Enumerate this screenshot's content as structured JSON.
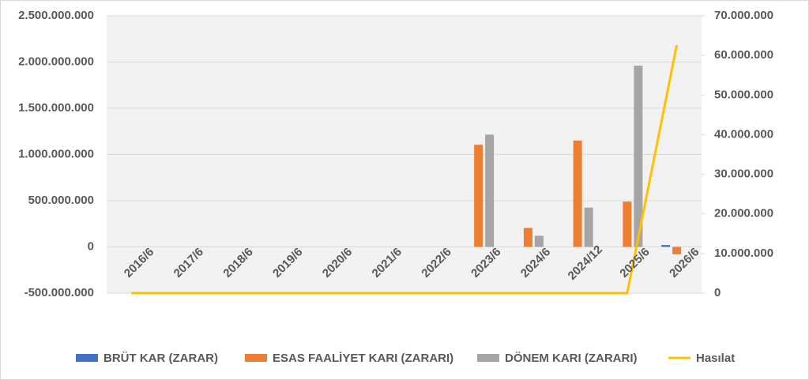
{
  "chart_data": {
    "type": "bar",
    "categories": [
      "2016/6",
      "2017/6",
      "2018/6",
      "2019/6",
      "2020/6",
      "2021/6",
      "2022/6",
      "2023/6",
      "2024/6",
      "2024/12",
      "2025/6",
      "2026/6"
    ],
    "series": [
      {
        "name": "BRÜT KAR (ZARAR)",
        "color": "#4472c4",
        "type": "bar",
        "values": [
          null,
          null,
          null,
          null,
          null,
          null,
          null,
          null,
          null,
          null,
          null,
          20000000
        ]
      },
      {
        "name": "ESAS FAALİYET KARI (ZARARI)",
        "color": "#ed7d31",
        "type": "bar",
        "values": [
          null,
          null,
          null,
          null,
          null,
          null,
          null,
          1105000000,
          205000000,
          1150000000,
          490000000,
          -80000000
        ]
      },
      {
        "name": "DÖNEM KARI (ZARARI)",
        "color": "#a5a5a5",
        "type": "bar",
        "values": [
          null,
          null,
          null,
          null,
          null,
          null,
          null,
          1215000000,
          120000000,
          425000000,
          1960000000,
          null
        ]
      },
      {
        "name": "Hasılat",
        "color": "#ffc000",
        "type": "line",
        "axis": "y2",
        "values": [
          0,
          0,
          0,
          0,
          0,
          0,
          0,
          0,
          0,
          0,
          0,
          62600000
        ]
      }
    ],
    "ylim": [
      -500000000,
      2500000000
    ],
    "yticks": [
      {
        "value": -500000000,
        "label": "-500.000.000"
      },
      0,
      {
        "value": 500000000,
        "label": "500.000.000"
      },
      {
        "value": 1000000000,
        "label": "1.000.000.000"
      },
      {
        "value": 1500000000,
        "label": "1.500.000.000"
      },
      {
        "value": 2000000000,
        "label": "2.000.000.000"
      },
      {
        "value": 2500000000,
        "label": "2.500.000.000"
      }
    ],
    "y2lim": [
      0,
      70000000
    ],
    "y2ticks": [
      0,
      {
        "value": 10000000,
        "label": "10.000.000"
      },
      {
        "value": 20000000,
        "label": "20.000.000"
      },
      {
        "value": 30000000,
        "label": "30.000.000"
      },
      {
        "value": 40000000,
        "label": "40.000.000"
      },
      {
        "value": 50000000,
        "label": "50.000.000"
      },
      {
        "value": 60000000,
        "label": "60.000.000"
      },
      {
        "value": 70000000,
        "label": "70.000.000"
      }
    ],
    "grid": true,
    "legend": "bottom"
  }
}
